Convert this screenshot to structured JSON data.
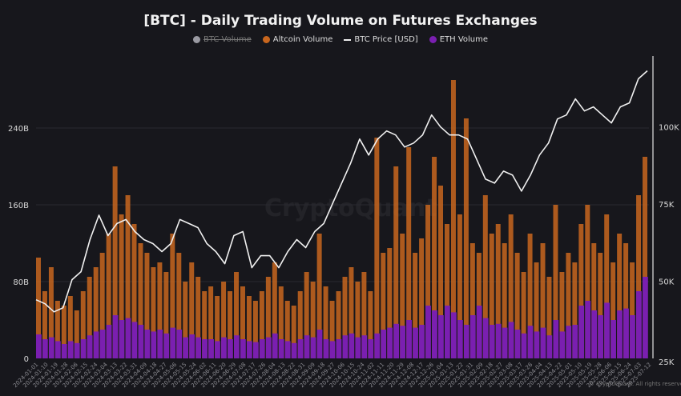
{
  "chart_data": {
    "type": "bar",
    "title": "[BTC] - Daily Trading Volume on Futures Exchanges",
    "legend": [
      {
        "name": "BTC Volume",
        "color": "#9a9aa2",
        "hidden": true,
        "marker": "dot"
      },
      {
        "name": "Altcoin Volume",
        "color": "#c8661e",
        "hidden": false,
        "marker": "dot"
      },
      {
        "name": "BTC Price [USD]",
        "color": "#f0f0f0",
        "hidden": false,
        "marker": "line"
      },
      {
        "name": "ETH Volume",
        "color": "#7a1fb0",
        "hidden": false,
        "marker": "dot"
      }
    ],
    "legend_placement": "top-center",
    "grid": true,
    "y_left": {
      "ticks": [
        "0",
        "80B",
        "160B",
        "240B"
      ],
      "tick_values": [
        0,
        80,
        160,
        240
      ],
      "range": [
        0,
        315
      ],
      "unit": "B USD"
    },
    "y_right": {
      "ticks": [
        "25K",
        "50K",
        "75K",
        "100K"
      ],
      "tick_values": [
        25000,
        50000,
        75000,
        100000
      ],
      "range": [
        25000,
        123000
      ]
    },
    "x_range": [
      "2024-01-01",
      "2025-07-15"
    ],
    "x_ticks": [
      "2024-01-01",
      "2024-01-10",
      "2024-01-19",
      "2024-01-28",
      "2024-02-06",
      "2024-02-15",
      "2024-02-24",
      "2024-03-04",
      "2024-03-13",
      "2024-03-22",
      "2024-03-31",
      "2024-04-09",
      "2024-04-18",
      "2024-04-27",
      "2024-05-06",
      "2024-05-15",
      "2024-05-24",
      "2024-06-02",
      "2024-06-11",
      "2024-06-20",
      "2024-06-29",
      "2024-07-08",
      "2024-07-17",
      "2024-07-26",
      "2024-08-04",
      "2024-08-13",
      "2024-08-22",
      "2024-08-31",
      "2024-09-09",
      "2024-09-18",
      "2024-09-27",
      "2024-10-06",
      "2024-10-15",
      "2024-10-24",
      "2024-11-02",
      "2024-11-11",
      "2024-11-20",
      "2024-11-29",
      "2024-12-08",
      "2024-12-17",
      "2024-12-26",
      "2025-01-04",
      "2025-01-13",
      "2025-01-22",
      "2025-01-31",
      "2025-02-09",
      "2025-02-18",
      "2025-02-27",
      "2025-03-08",
      "2025-03-17",
      "2025-03-26",
      "2025-04-04",
      "2025-04-13",
      "2025-04-22",
      "2025-05-01",
      "2025-05-10",
      "2025-05-19",
      "2025-05-28",
      "2025-06-06",
      "2025-06-15",
      "2025-06-24",
      "2025-07-03",
      "2025-07-12"
    ],
    "series": [
      {
        "name": "Altcoin Volume",
        "axis": "left",
        "values": [
          105,
          70,
          95,
          60,
          55,
          65,
          50,
          70,
          85,
          95,
          110,
          130,
          200,
          150,
          170,
          140,
          120,
          110,
          95,
          100,
          90,
          130,
          110,
          80,
          100,
          85,
          70,
          75,
          65,
          80,
          70,
          90,
          75,
          65,
          60,
          70,
          85,
          100,
          75,
          60,
          55,
          70,
          90,
          80,
          130,
          75,
          60,
          70,
          85,
          95,
          80,
          90,
          70,
          230,
          110,
          115,
          200,
          130,
          220,
          110,
          125,
          160,
          210,
          180,
          140,
          290,
          150,
          250,
          120,
          110,
          170,
          130,
          140,
          120,
          150,
          110,
          90,
          130,
          100,
          120,
          85,
          160,
          90,
          110,
          100,
          140,
          160,
          120,
          110,
          150,
          100,
          130,
          120,
          100,
          170,
          210
        ]
      },
      {
        "name": "ETH Volume",
        "axis": "left",
        "values": [
          25,
          20,
          22,
          18,
          15,
          18,
          16,
          20,
          24,
          28,
          30,
          35,
          45,
          40,
          42,
          38,
          35,
          30,
          28,
          30,
          26,
          32,
          30,
          22,
          25,
          22,
          20,
          20,
          18,
          22,
          20,
          24,
          20,
          18,
          17,
          20,
          22,
          26,
          20,
          18,
          16,
          20,
          24,
          22,
          30,
          20,
          18,
          20,
          24,
          26,
          22,
          24,
          20,
          26,
          30,
          32,
          36,
          34,
          40,
          32,
          35,
          55,
          50,
          45,
          55,
          48,
          40,
          35,
          45,
          55,
          42,
          35,
          36,
          32,
          38,
          30,
          26,
          34,
          28,
          32,
          24,
          40,
          28,
          34,
          35,
          55,
          60,
          50,
          45,
          58,
          40,
          50,
          52,
          45,
          70,
          85
        ]
      },
      {
        "name": "BTC Price [USD]",
        "axis": "right",
        "type": "line",
        "values": [
          44000,
          42700,
          40100,
          41400,
          50500,
          53100,
          63500,
          71400,
          64800,
          68700,
          70000,
          66100,
          63500,
          62200,
          59600,
          62200,
          70000,
          68700,
          67400,
          62200,
          59600,
          55700,
          64800,
          66100,
          54400,
          58300,
          58300,
          54400,
          59600,
          63500,
          60900,
          66100,
          68700,
          75300,
          81800,
          88300,
          96100,
          90900,
          96100,
          98700,
          97400,
          93500,
          94800,
          97400,
          103900,
          100000,
          97400,
          97400,
          96100,
          89600,
          83100,
          81800,
          85700,
          84400,
          79200,
          84400,
          90900,
          94800,
          102600,
          103900,
          109100,
          105200,
          106500,
          103900,
          101300,
          106500,
          107800,
          115600,
          118200
        ]
      }
    ],
    "watermark": "CryptoQuant",
    "copyright": "© CryptoQuant. All rights reserved"
  }
}
